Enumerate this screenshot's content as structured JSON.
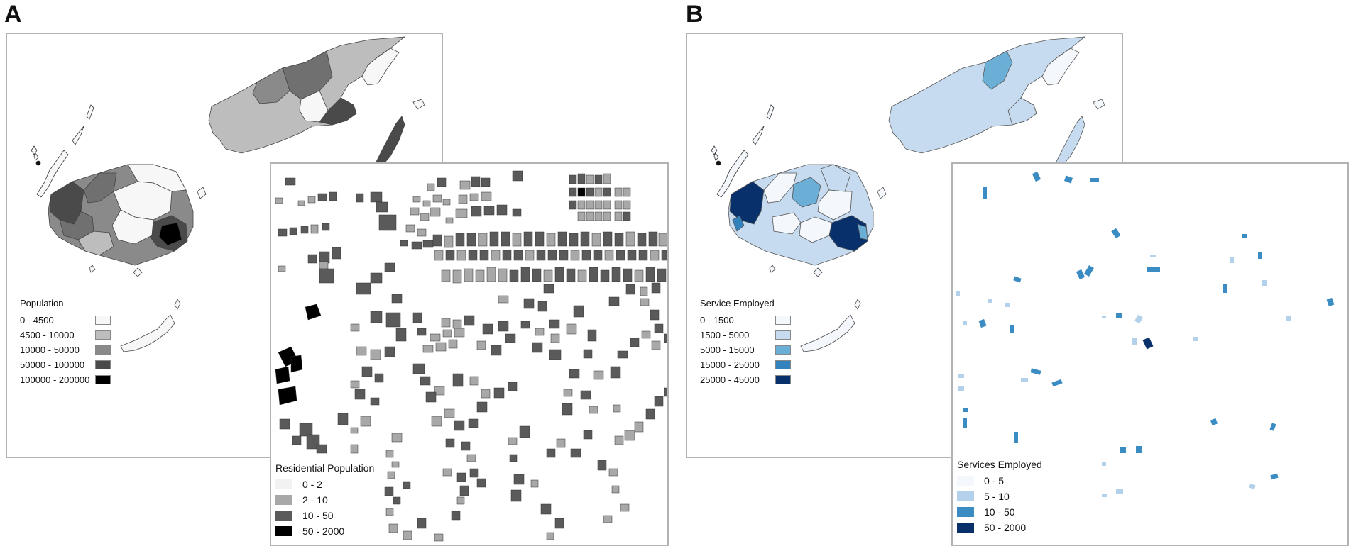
{
  "panel_a": {
    "letter": "A",
    "island_legend": {
      "title": "Population",
      "items": [
        {
          "label": "0 - 4500",
          "color": "#f7f7f7"
        },
        {
          "label": "4500 - 10000",
          "color": "#bdbdbd"
        },
        {
          "label": "10000 - 50000",
          "color": "#8a8a8a"
        },
        {
          "label": "50000 - 100000",
          "color": "#4a4a4a"
        },
        {
          "label": "100000 - 200000",
          "color": "#000000"
        }
      ]
    },
    "inset_legend": {
      "title": "Residential Population",
      "items": [
        {
          "label": "0 - 2",
          "color": "#f2f2f2"
        },
        {
          "label": "2 - 10",
          "color": "#a8a8a8"
        },
        {
          "label": "10 - 50",
          "color": "#5a5a5a"
        },
        {
          "label": "50 - 2000",
          "color": "#000000"
        }
      ]
    }
  },
  "panel_b": {
    "letter": "B",
    "island_legend": {
      "title": "Service Employed",
      "items": [
        {
          "label": "0 - 1500",
          "color": "#f4f8fd"
        },
        {
          "label": "1500 - 5000",
          "color": "#c6dbef"
        },
        {
          "label": "5000 - 15000",
          "color": "#6baed6"
        },
        {
          "label": "15000 - 25000",
          "color": "#3182bd"
        },
        {
          "label": "25000 - 45000",
          "color": "#08306b"
        }
      ]
    },
    "inset_legend": {
      "title": "Services Employed",
      "items": [
        {
          "label": "0 - 5",
          "color": "#f4f8fd"
        },
        {
          "label": "5 - 10",
          "color": "#b3d1ea"
        },
        {
          "label": "10 - 50",
          "color": "#3c8cc4"
        },
        {
          "label": "50 - 2000",
          "color": "#08306b"
        }
      ]
    }
  },
  "colors": {
    "frame_border": "#b3b3b3",
    "outline": "#444444"
  }
}
